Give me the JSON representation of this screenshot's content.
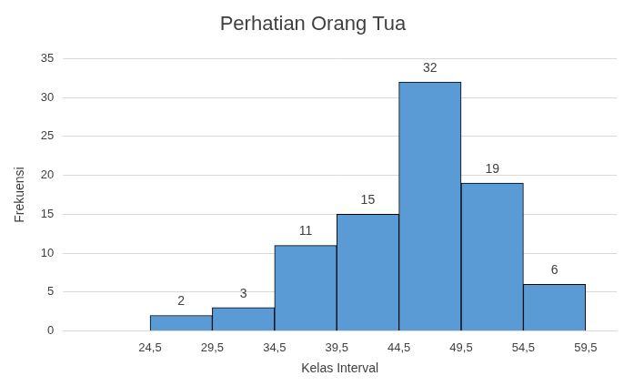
{
  "chart_data": {
    "type": "histogram",
    "title": "Perhatian Orang Tua",
    "x_label": "Kelas Interval",
    "y_label": "Frekuensi",
    "bins": [
      24.5,
      29.5,
      34.5,
      39.5,
      44.5,
      49.5,
      54.5,
      59.5
    ],
    "values": [
      2,
      3,
      11,
      15,
      32,
      19,
      6
    ],
    "color": "#5b9bd5",
    "xlim": [
      17.5,
      62
    ],
    "xticks": [
      {
        "value": 24.5,
        "label": "24,5"
      },
      {
        "value": 29.5,
        "label": "29,5"
      },
      {
        "value": 34.5,
        "label": "34,5"
      },
      {
        "value": 39.5,
        "label": "39,5"
      },
      {
        "value": 44.5,
        "label": "44,5"
      },
      {
        "value": 49.5,
        "label": "49,5"
      },
      {
        "value": 54.5,
        "label": "54,5"
      },
      {
        "value": 59.5,
        "label": "59,5"
      }
    ],
    "ylim": [
      0,
      35
    ],
    "yticks": [
      0,
      5,
      10,
      15,
      20,
      25,
      30,
      35
    ],
    "grid": true,
    "data_labels": true
  }
}
